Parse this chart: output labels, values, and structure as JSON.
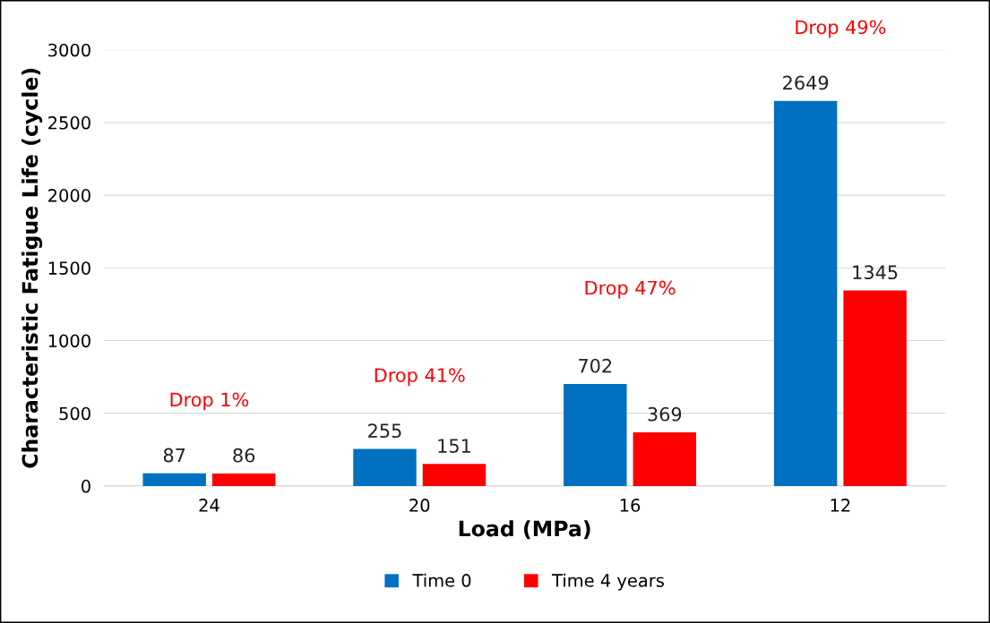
{
  "chart_data": {
    "type": "bar",
    "xlabel": "Load (MPa)",
    "ylabel": "Characteristic Fatigue Life (cycle)",
    "categories": [
      "24",
      "20",
      "16",
      "12"
    ],
    "series": [
      {
        "name": "Time 0",
        "color": "#0070c0",
        "values": [
          87,
          255,
          702,
          2649
        ]
      },
      {
        "name": "Time 4 years",
        "color": "#ff0000",
        "values": [
          86,
          151,
          369,
          1345
        ]
      }
    ],
    "ylim": [
      0,
      3000
    ],
    "yticks": [
      0,
      500,
      1000,
      1500,
      2000,
      2500,
      3000
    ],
    "grid": "y",
    "legend": "bottom",
    "data_labels": true,
    "annotations": [
      "Drop 1%",
      "Drop 41%",
      "Drop 47%",
      "Drop 49%"
    ]
  }
}
